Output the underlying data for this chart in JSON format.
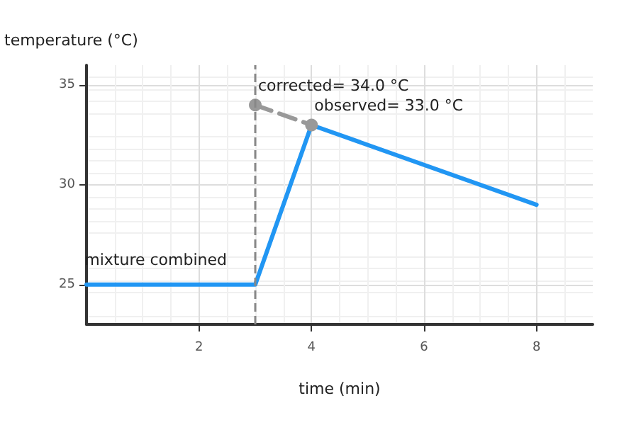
{
  "chart_data": {
    "type": "line",
    "xlabel": "time (min)",
    "ylabel": "temperature (°C)",
    "xlim": [
      0,
      9
    ],
    "xticks": [
      2,
      4,
      6,
      8
    ],
    "ylim": [
      23,
      36
    ],
    "yticks": [
      25,
      30,
      35
    ],
    "grid": true,
    "series": [
      {
        "color": "#2196f3",
        "x": [
          0,
          3,
          4,
          8
        ],
        "values": [
          25,
          25,
          33,
          29
        ],
        "marker": "none",
        "line_style": "solid"
      },
      {
        "color": "#999999",
        "x": [
          3,
          4
        ],
        "values": [
          34,
          33
        ],
        "marker": "circle",
        "line_style": "dashed"
      }
    ],
    "ref_lines": [
      {
        "axis": "x",
        "value": 3,
        "label": "mixture combined",
        "color": "#888888",
        "line_style": "dashed"
      }
    ],
    "annotations": [
      {
        "text": "corrected= 34.0 °C",
        "x": 3,
        "y": 34
      },
      {
        "text": "observed= 33.0 °C",
        "x": 4,
        "y": 33
      }
    ]
  }
}
